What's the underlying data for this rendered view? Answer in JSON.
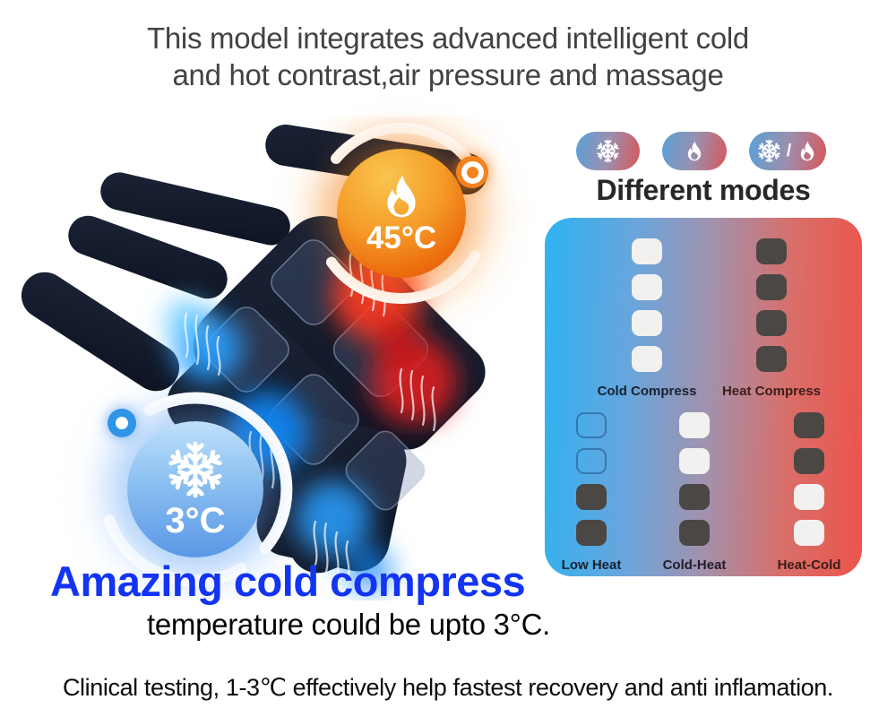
{
  "header": {
    "line1": "This model integrates advanced intelligent cold",
    "line2": "and hot contrast,air pressure and massage"
  },
  "device": {
    "hot_badge": {
      "temp": "45°C",
      "icon": "flame-icon"
    },
    "cold_badge": {
      "temp": "3°C",
      "icon": "snowflake-icon"
    }
  },
  "modes": {
    "title": "Different modes",
    "pills": [
      {
        "name": "cold-mode-pill",
        "icons": [
          "snowflake"
        ]
      },
      {
        "name": "heat-mode-pill",
        "icons": [
          "flame"
        ]
      },
      {
        "name": "contrast-mode-pill",
        "icons": [
          "snowflake",
          "slash",
          "flame"
        ]
      }
    ],
    "panel": {
      "top_columns": [
        {
          "label": "Cold Compress",
          "label_color": "#18222f",
          "cells": [
            "white",
            "white",
            "white",
            "white"
          ]
        },
        {
          "label": "Heat Compress",
          "label_color": "#3c1d19",
          "cells": [
            "dark",
            "dark",
            "dark",
            "dark"
          ]
        }
      ],
      "bottom_columns": [
        {
          "label": "Low Heat",
          "label_color": "#18222f",
          "cells": [
            "outline",
            "outline",
            "dark",
            "dark"
          ]
        },
        {
          "label": "Cold-Heat",
          "label_color": "#241d2a",
          "cells": [
            "white",
            "white",
            "dark",
            "dark"
          ]
        },
        {
          "label": "Heat-Cold",
          "label_color": "#3c1d19",
          "cells": [
            "dark",
            "dark",
            "white",
            "white"
          ]
        }
      ]
    }
  },
  "tagline": {
    "title": "Amazing cold compress",
    "subtitle": "temperature could be upto 3°C."
  },
  "footer": {
    "text": "Clinical testing, 1-3℃ effectively help fastest recovery and anti inflamation."
  },
  "colors": {
    "accent_blue": "#1334f3",
    "panel_cold": "#2eb2f2",
    "panel_hot": "#ec544b",
    "hot_badge": "#f59b28",
    "cold_badge": "#5a97e6",
    "cell_white": "#f2f1ef",
    "cell_dark": "#4b4745"
  }
}
